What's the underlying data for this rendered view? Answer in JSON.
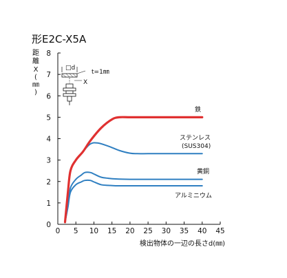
{
  "chart_data": {
    "type": "line",
    "title": "形E2C-X5A",
    "ylabel_chars": [
      "距",
      "離",
      "X",
      "(",
      "㎜",
      ")"
    ],
    "xlabel": "検出物体の一辺の長さd(㎜)",
    "xlim": [
      0,
      45
    ],
    "ylim": [
      0,
      8
    ],
    "xticks": [
      0,
      5,
      10,
      15,
      20,
      25,
      30,
      35,
      40,
      45
    ],
    "yticks": [
      0,
      1,
      2,
      3,
      4,
      5,
      6,
      7,
      8
    ],
    "grid": false,
    "series": [
      {
        "name": "鉄",
        "color": "#e03131",
        "x": [
          2,
          2.8,
          3.5,
          5,
          7,
          9,
          12,
          15,
          17,
          20,
          25,
          30,
          35,
          40
        ],
        "y": [
          0.1,
          1.5,
          2.5,
          3.0,
          3.4,
          3.9,
          4.5,
          4.9,
          5.0,
          5.0,
          5.0,
          5.0,
          5.0,
          5.0
        ]
      },
      {
        "name": "ステンレス(SUS304)",
        "color": "#2f7fc1",
        "x": [
          2,
          2.8,
          3.5,
          5,
          7,
          9,
          11,
          14,
          17,
          20,
          22,
          25,
          30,
          35,
          40
        ],
        "y": [
          0.1,
          1.5,
          2.5,
          3.0,
          3.4,
          3.75,
          3.8,
          3.65,
          3.45,
          3.32,
          3.3,
          3.3,
          3.3,
          3.3,
          3.3
        ]
      },
      {
        "name": "黄銅",
        "color": "#2f7fc1",
        "x": [
          2,
          2.8,
          3.5,
          5,
          6.5,
          7.5,
          9,
          10,
          12,
          14,
          16,
          20,
          25,
          30,
          35,
          40
        ],
        "y": [
          0.1,
          0.9,
          1.7,
          2.1,
          2.3,
          2.42,
          2.42,
          2.35,
          2.2,
          2.15,
          2.12,
          2.1,
          2.1,
          2.1,
          2.1,
          2.1
        ]
      },
      {
        "name": "アルミニウム",
        "color": "#2f7fc1",
        "x": [
          2,
          2.8,
          3.5,
          5,
          6.5,
          7.5,
          9,
          10,
          12,
          14,
          16,
          20,
          25,
          30,
          35,
          40
        ],
        "y": [
          0.1,
          0.8,
          1.5,
          1.85,
          1.98,
          2.05,
          2.05,
          1.98,
          1.85,
          1.82,
          1.8,
          1.8,
          1.8,
          1.8,
          1.8,
          1.8
        ]
      }
    ],
    "series_labels": [
      "鉄",
      "ステンレス",
      "(SUS304)",
      "黄銅",
      "アルミニウム"
    ],
    "inset": {
      "d_label": "□d",
      "x_label": "X",
      "t_label": "t=1㎜"
    }
  }
}
